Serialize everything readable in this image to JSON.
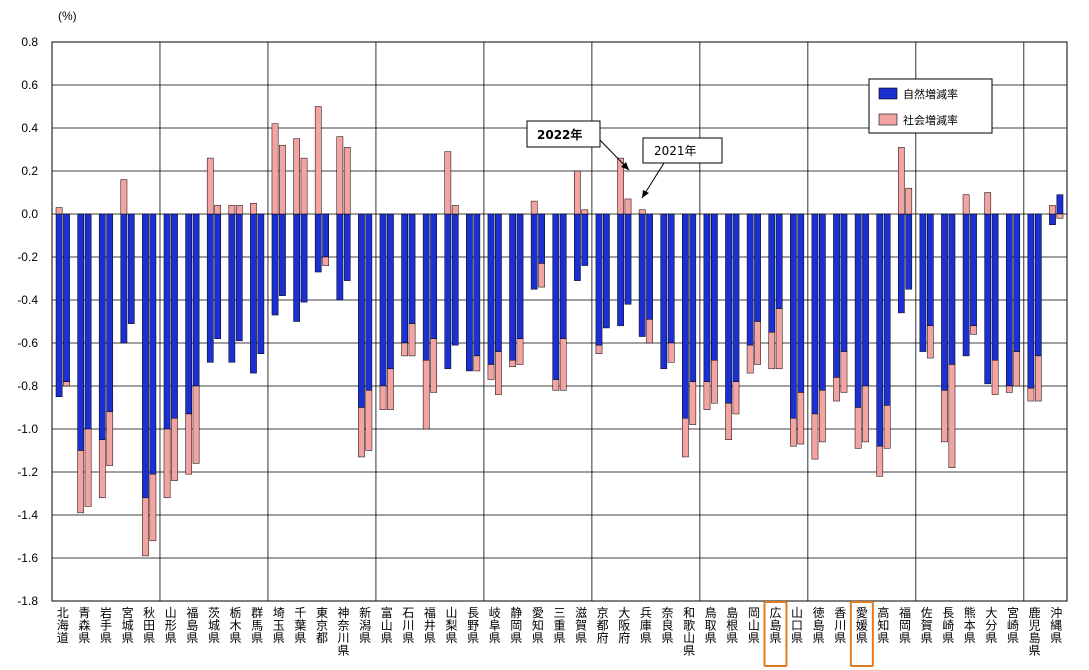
{
  "chart_data": {
    "type": "bar",
    "unit_label": "(%)",
    "ylim": [
      -1.8,
      0.8
    ],
    "yticks": [
      "0.8",
      "0.6",
      "0.4",
      "0.2",
      "0.0",
      "-0.2",
      "-0.4",
      "-0.6",
      "-0.8",
      "-1.0",
      "-1.2",
      "-1.4",
      "-1.6",
      "-1.8"
    ],
    "grid": true,
    "legend_position": "top-right",
    "colors": {
      "natural": "#1c2fd0",
      "social": "#f4a3a3"
    },
    "categories": [
      "北海道",
      "青森県",
      "岩手県",
      "宮城県",
      "秋田県",
      "山形県",
      "福島県",
      "茨城県",
      "栃木県",
      "群馬県",
      "埼玉県",
      "千葉県",
      "東京都",
      "神奈川県",
      "新潟県",
      "富山県",
      "石川県",
      "福井県",
      "山梨県",
      "長野県",
      "岐阜県",
      "静岡県",
      "愛知県",
      "三重県",
      "滋賀県",
      "京都府",
      "大阪府",
      "兵庫県",
      "奈良県",
      "和歌山県",
      "鳥取県",
      "島根県",
      "岡山県",
      "広島県",
      "山口県",
      "徳島県",
      "香川県",
      "愛媛県",
      "高知県",
      "福岡県",
      "佐賀県",
      "長崎県",
      "熊本県",
      "大分県",
      "宮崎県",
      "鹿児島県",
      "沖縄県"
    ],
    "highlighted": [
      "広島県",
      "愛媛県"
    ],
    "series": [
      {
        "name": "自然増減率",
        "year": "2022年",
        "values": [
          -0.85,
          -1.1,
          -1.05,
          -0.6,
          -1.32,
          -1.0,
          -0.93,
          -0.69,
          -0.69,
          -0.74,
          -0.47,
          -0.5,
          -0.27,
          -0.4,
          -0.9,
          -0.8,
          -0.6,
          -0.68,
          -0.72,
          -0.73,
          -0.7,
          -0.68,
          -0.35,
          -0.77,
          -0.31,
          -0.61,
          -0.52,
          -0.57,
          -0.72,
          -0.95,
          -0.78,
          -0.88,
          -0.61,
          -0.55,
          -0.95,
          -0.93,
          -0.76,
          -0.9,
          -1.08,
          -0.46,
          -0.64,
          -0.82,
          -0.66,
          -0.79,
          -0.8,
          -0.81,
          -0.05
        ]
      },
      {
        "name": "社会増減率",
        "year": "2022年",
        "values": [
          0.03,
          -0.29,
          -0.27,
          0.16,
          -0.27,
          -0.32,
          -0.28,
          0.26,
          0.04,
          0.05,
          0.42,
          0.35,
          0.5,
          0.36,
          -0.23,
          -0.11,
          -0.06,
          -0.32,
          0.29,
          0.0,
          -0.07,
          -0.03,
          0.06,
          -0.05,
          0.2,
          -0.04,
          0.26,
          0.02,
          0.0,
          -0.18,
          -0.13,
          -0.17,
          -0.13,
          -0.17,
          -0.13,
          -0.21,
          -0.11,
          -0.19,
          -0.14,
          0.31,
          0.0,
          -0.24,
          0.09,
          0.1,
          -0.03,
          -0.06,
          0.04
        ]
      },
      {
        "name": "自然増減率",
        "year": "2021年",
        "values": [
          -0.78,
          -1.0,
          -0.92,
          -0.51,
          -1.21,
          -0.95,
          -0.8,
          -0.58,
          -0.59,
          -0.65,
          -0.38,
          -0.41,
          -0.2,
          -0.31,
          -0.82,
          -0.72,
          -0.51,
          -0.58,
          -0.61,
          -0.66,
          -0.64,
          -0.58,
          -0.23,
          -0.58,
          -0.24,
          -0.53,
          -0.42,
          -0.49,
          -0.6,
          -0.78,
          -0.68,
          -0.78,
          -0.5,
          -0.44,
          -0.83,
          -0.82,
          -0.64,
          -0.8,
          -0.89,
          -0.35,
          -0.52,
          -0.7,
          -0.52,
          -0.68,
          -0.64,
          -0.66,
          0.09
        ]
      },
      {
        "name": "社会増減率",
        "year": "2021年",
        "values": [
          -0.02,
          -0.36,
          -0.25,
          0.0,
          -0.31,
          -0.29,
          -0.36,
          0.04,
          0.04,
          0.0,
          0.32,
          0.26,
          -0.04,
          0.31,
          -0.28,
          -0.19,
          -0.15,
          -0.25,
          0.04,
          -0.07,
          -0.2,
          -0.12,
          -0.11,
          -0.24,
          0.02,
          0.0,
          0.07,
          -0.11,
          -0.09,
          -0.2,
          -0.2,
          -0.15,
          -0.2,
          -0.28,
          -0.24,
          -0.24,
          -0.19,
          -0.26,
          -0.2,
          0.12,
          -0.15,
          -0.48,
          -0.04,
          -0.16,
          -0.16,
          -0.21,
          -0.02
        ]
      }
    ],
    "legend": [
      "自然増減率",
      "社会増減率"
    ],
    "annotations": [
      "2022年",
      "2021年"
    ]
  }
}
